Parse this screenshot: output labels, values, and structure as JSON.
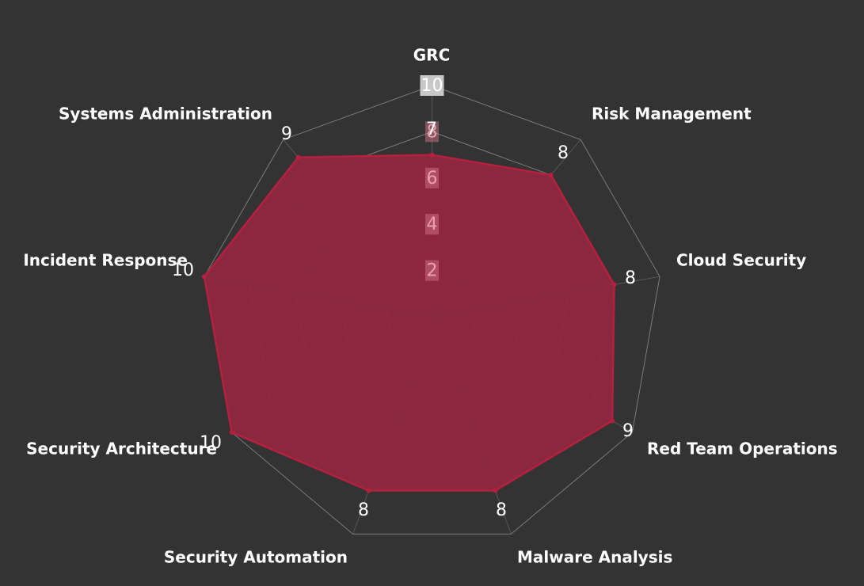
{
  "chart_data": {
    "type": "radar",
    "title": "",
    "axes": [
      "GRC",
      "Risk Management",
      "Cloud Security",
      "Red Team Operations",
      "Malware Analysis",
      "Security Automation",
      "Security Architecture",
      "Incident Response",
      "Systems Administration"
    ],
    "series": [
      {
        "values": [
          7,
          8,
          8,
          9,
          8,
          8,
          10,
          10,
          9
        ]
      }
    ],
    "value_labels": [
      "7",
      "8",
      "8",
      "9",
      "8",
      "8",
      "10",
      "10",
      "9"
    ],
    "radial_range": [
      0,
      10
    ],
    "radial_ticks": [
      {
        "value": 2,
        "label": "2"
      },
      {
        "value": 4,
        "label": "4"
      },
      {
        "value": 6,
        "label": "6"
      },
      {
        "value": 8,
        "label": "8"
      },
      {
        "value": 10,
        "label": "10"
      }
    ],
    "grid": true,
    "legend": "none",
    "colors": {
      "background": "#333333",
      "fill": "#8e2840",
      "stroke": "#b5203f",
      "grid": "#7a7a7a",
      "text": "#ffffff"
    }
  }
}
